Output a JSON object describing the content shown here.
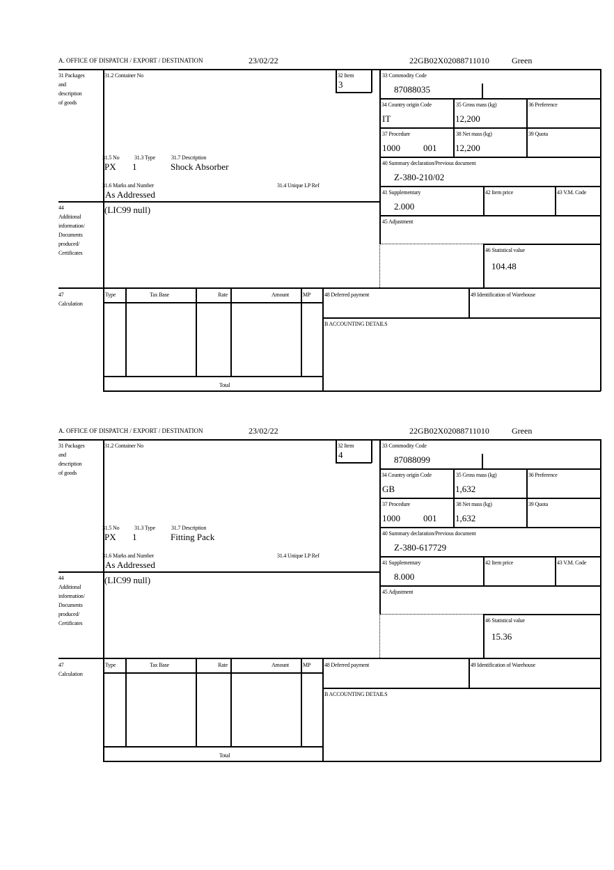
{
  "labels": {
    "office": "A.  OFFICE OF DISPATCH / EXPORT / DESTINATION",
    "packages": [
      "31 Packages",
      "and",
      "description",
      "of goods"
    ],
    "container_no": "31.2 Container No",
    "item": "32 Item",
    "commodity_code": "33 Commodity Code",
    "country_origin": "34 Country origin Code",
    "gross_mass": "35 Gross mass (kg)",
    "preference": "36 Preference",
    "procedure": "37 Procedure",
    "net_mass": "38 Net mass (kg)",
    "quota": "39 Quota",
    "summary_declaration": "40 Summary declaration/Previous document",
    "supplementary": "41 Supplementary",
    "item_price": "42 Item price",
    "vm_code": "43 V.M. Code",
    "adjustment": "45 Adjustment",
    "statistical_value": "46 Statistical value",
    "no": "31.5 No",
    "type": "31.3 Type",
    "description": "31.7 Description",
    "marks": "31.6 Marks and Number",
    "unique_lp_ref": "31.4 Unique LP Ref",
    "additional_info": [
      "44",
      "Additional",
      "information/",
      "Documents",
      "produced/",
      "Certificates"
    ],
    "calculation": [
      "47",
      "Calculation"
    ],
    "calc_columns": [
      "Type",
      "Tax Base",
      "Rate",
      "Amount",
      "MP"
    ],
    "total": "Total",
    "deferred_payment": "48 Deferred payment",
    "warehouse": "49 Identification of Warehouse",
    "accounting": "B ACCOUNTING DETAILS"
  },
  "forms": [
    {
      "date": "23/02/22",
      "reference": "22GB02X02088711010",
      "route": "Green",
      "item": "3",
      "commodity_code": "87088035",
      "country_origin": "IT",
      "gross_mass": "12,200",
      "procedure": "1000",
      "procedure_additional": "001",
      "net_mass": "12,200",
      "summary_declaration": "Z-380-210/02",
      "supplementary": "2.000",
      "statistical_value": "104.48",
      "no": "PX",
      "type": "1",
      "description": "Shock Absorber",
      "marks": "As Addressed",
      "additional_info": "(LIC99 null)"
    },
    {
      "date": "23/02/22",
      "reference": "22GB02X02088711010",
      "route": "Green",
      "item": "4",
      "commodity_code": "87088099",
      "country_origin": "GB",
      "gross_mass": "1,632",
      "procedure": "1000",
      "procedure_additional": "001",
      "net_mass": "1,632",
      "summary_declaration": "Z-380-617729",
      "supplementary": "8.000",
      "statistical_value": "15.36",
      "no": "PX",
      "type": "1",
      "description": "Fitting Pack",
      "marks": "As Addressed",
      "additional_info": "(LIC99 null)"
    }
  ]
}
